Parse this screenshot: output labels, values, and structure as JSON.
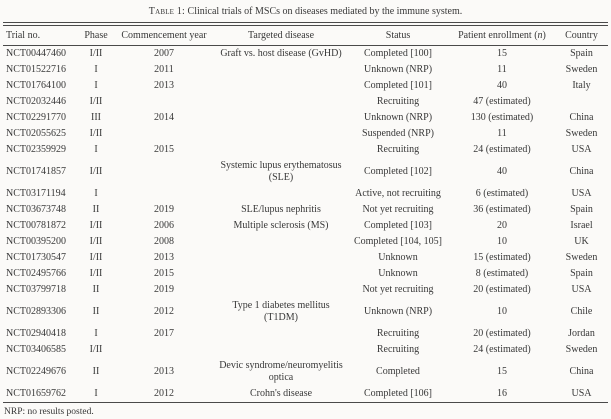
{
  "caption": {
    "label": "Table 1:",
    "text": "Clinical trials of MSCs on diseases mediated by the immune system."
  },
  "table": {
    "headers": {
      "trial": "Trial no.",
      "phase": "Phase",
      "year": "Commencement year",
      "disease": "Targeted disease",
      "status": "Status",
      "enrollment_prefix": "Patient enrollment (",
      "enrollment_var": "n",
      "enrollment_suffix": ")",
      "country": "Country"
    },
    "rows": [
      {
        "trial": "NCT00447460",
        "phase": "I/II",
        "year": "2007",
        "disease": "Graft vs. host disease (GvHD)",
        "status": "Completed [100]",
        "enrollment": "15",
        "country": "Spain"
      },
      {
        "trial": "NCT01522716",
        "phase": "I",
        "year": "2011",
        "disease": "",
        "status": "Unknown (NRP)",
        "enrollment": "11",
        "country": "Sweden"
      },
      {
        "trial": "NCT01764100",
        "phase": "I",
        "year": "2013",
        "disease": "",
        "status": "Completed [101]",
        "enrollment": "40",
        "country": "Italy"
      },
      {
        "trial": "NCT02032446",
        "phase": "I/II",
        "year": "",
        "disease": "",
        "status": "Recruiting",
        "enrollment": "47 (estimated)",
        "country": ""
      },
      {
        "trial": "NCT02291770",
        "phase": "III",
        "year": "2014",
        "disease": "",
        "status": "Unknown (NRP)",
        "enrollment": "130 (estimated)",
        "country": "China"
      },
      {
        "trial": "NCT02055625",
        "phase": "I/II",
        "year": "",
        "disease": "",
        "status": "Suspended (NRP)",
        "enrollment": "11",
        "country": "Sweden"
      },
      {
        "trial": "NCT02359929",
        "phase": "I",
        "year": "2015",
        "disease": "",
        "status": "Recruiting",
        "enrollment": "24 (estimated)",
        "country": "USA"
      },
      {
        "trial": "NCT01741857",
        "phase": "I/II",
        "year": "",
        "disease": "Systemic lupus erythematosus (SLE)",
        "status": "Completed [102]",
        "enrollment": "40",
        "country": "China"
      },
      {
        "trial": "NCT03171194",
        "phase": "I",
        "year": "",
        "disease": "",
        "status": "Active, not recruiting",
        "enrollment": "6 (estimated)",
        "country": "USA"
      },
      {
        "trial": "NCT03673748",
        "phase": "II",
        "year": "2019",
        "disease": "SLE/lupus nephritis",
        "status": "Not yet recruiting",
        "enrollment": "36 (estimated)",
        "country": "Spain"
      },
      {
        "trial": "NCT00781872",
        "phase": "I/II",
        "year": "2006",
        "disease": "Multiple sclerosis (MS)",
        "status": "Completed [103]",
        "enrollment": "20",
        "country": "Israel"
      },
      {
        "trial": "NCT00395200",
        "phase": "I/II",
        "year": "2008",
        "disease": "",
        "status": "Completed [104, 105]",
        "enrollment": "10",
        "country": "UK"
      },
      {
        "trial": "NCT01730547",
        "phase": "I/II",
        "year": "2013",
        "disease": "",
        "status": "Unknown",
        "enrollment": "15 (estimated)",
        "country": "Sweden"
      },
      {
        "trial": "NCT02495766",
        "phase": "I/II",
        "year": "2015",
        "disease": "",
        "status": "Unknown",
        "enrollment": "8 (estimated)",
        "country": "Spain"
      },
      {
        "trial": "NCT03799718",
        "phase": "II",
        "year": "2019",
        "disease": "",
        "status": "Not yet recruiting",
        "enrollment": "20 (estimated)",
        "country": "USA"
      },
      {
        "trial": "NCT02893306",
        "phase": "II",
        "year": "2012",
        "disease": "Type 1 diabetes mellitus (T1DM)",
        "status": "Unknown (NRP)",
        "enrollment": "10",
        "country": "Chile"
      },
      {
        "trial": "NCT02940418",
        "phase": "I",
        "year": "2017",
        "disease": "",
        "status": "Recruiting",
        "enrollment": "20 (estimated)",
        "country": "Jordan"
      },
      {
        "trial": "NCT03406585",
        "phase": "I/II",
        "year": "",
        "disease": "",
        "status": "Recruiting",
        "enrollment": "24 (estimated)",
        "country": "Sweden"
      },
      {
        "trial": "NCT02249676",
        "phase": "II",
        "year": "2013",
        "disease": "Devic syndrome/neuromyelitis optica",
        "status": "Completed",
        "enrollment": "15",
        "country": "China"
      },
      {
        "trial": "NCT01659762",
        "phase": "I",
        "year": "2012",
        "disease": "Crohn's disease",
        "status": "Completed [106]",
        "enrollment": "16",
        "country": "USA"
      }
    ]
  },
  "footnote": "NRP: no results posted.",
  "colors": {
    "background": "#fbfaf8",
    "text": "#383838",
    "rule": "#4a4a4a"
  }
}
